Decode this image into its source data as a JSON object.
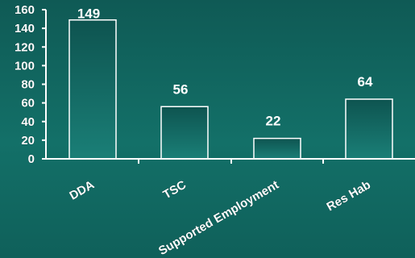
{
  "chart_data": {
    "type": "bar",
    "title": "",
    "xlabel": "",
    "ylabel": "",
    "categories": [
      "DDA",
      "TSC",
      "Supported Employment",
      "Res Hab"
    ],
    "values": [
      149,
      56,
      22,
      64
    ],
    "data_labels": [
      "149",
      "56",
      "22",
      "64"
    ],
    "ylim": [
      0,
      160
    ],
    "yticks": [
      0,
      20,
      40,
      60,
      80,
      100,
      120,
      140,
      160
    ],
    "ytick_labels": [
      "0",
      "20",
      "40",
      "60",
      "80",
      "100",
      "120",
      "140",
      "160"
    ],
    "grid": false,
    "legend": "none",
    "colors": {
      "background": "#137068",
      "bar_outline": "#ffffff",
      "bar_fill_top": "#0e5450",
      "bar_fill_bottom": "#1a7f77",
      "axis": "#ffffff",
      "text": "#ffffff"
    }
  }
}
